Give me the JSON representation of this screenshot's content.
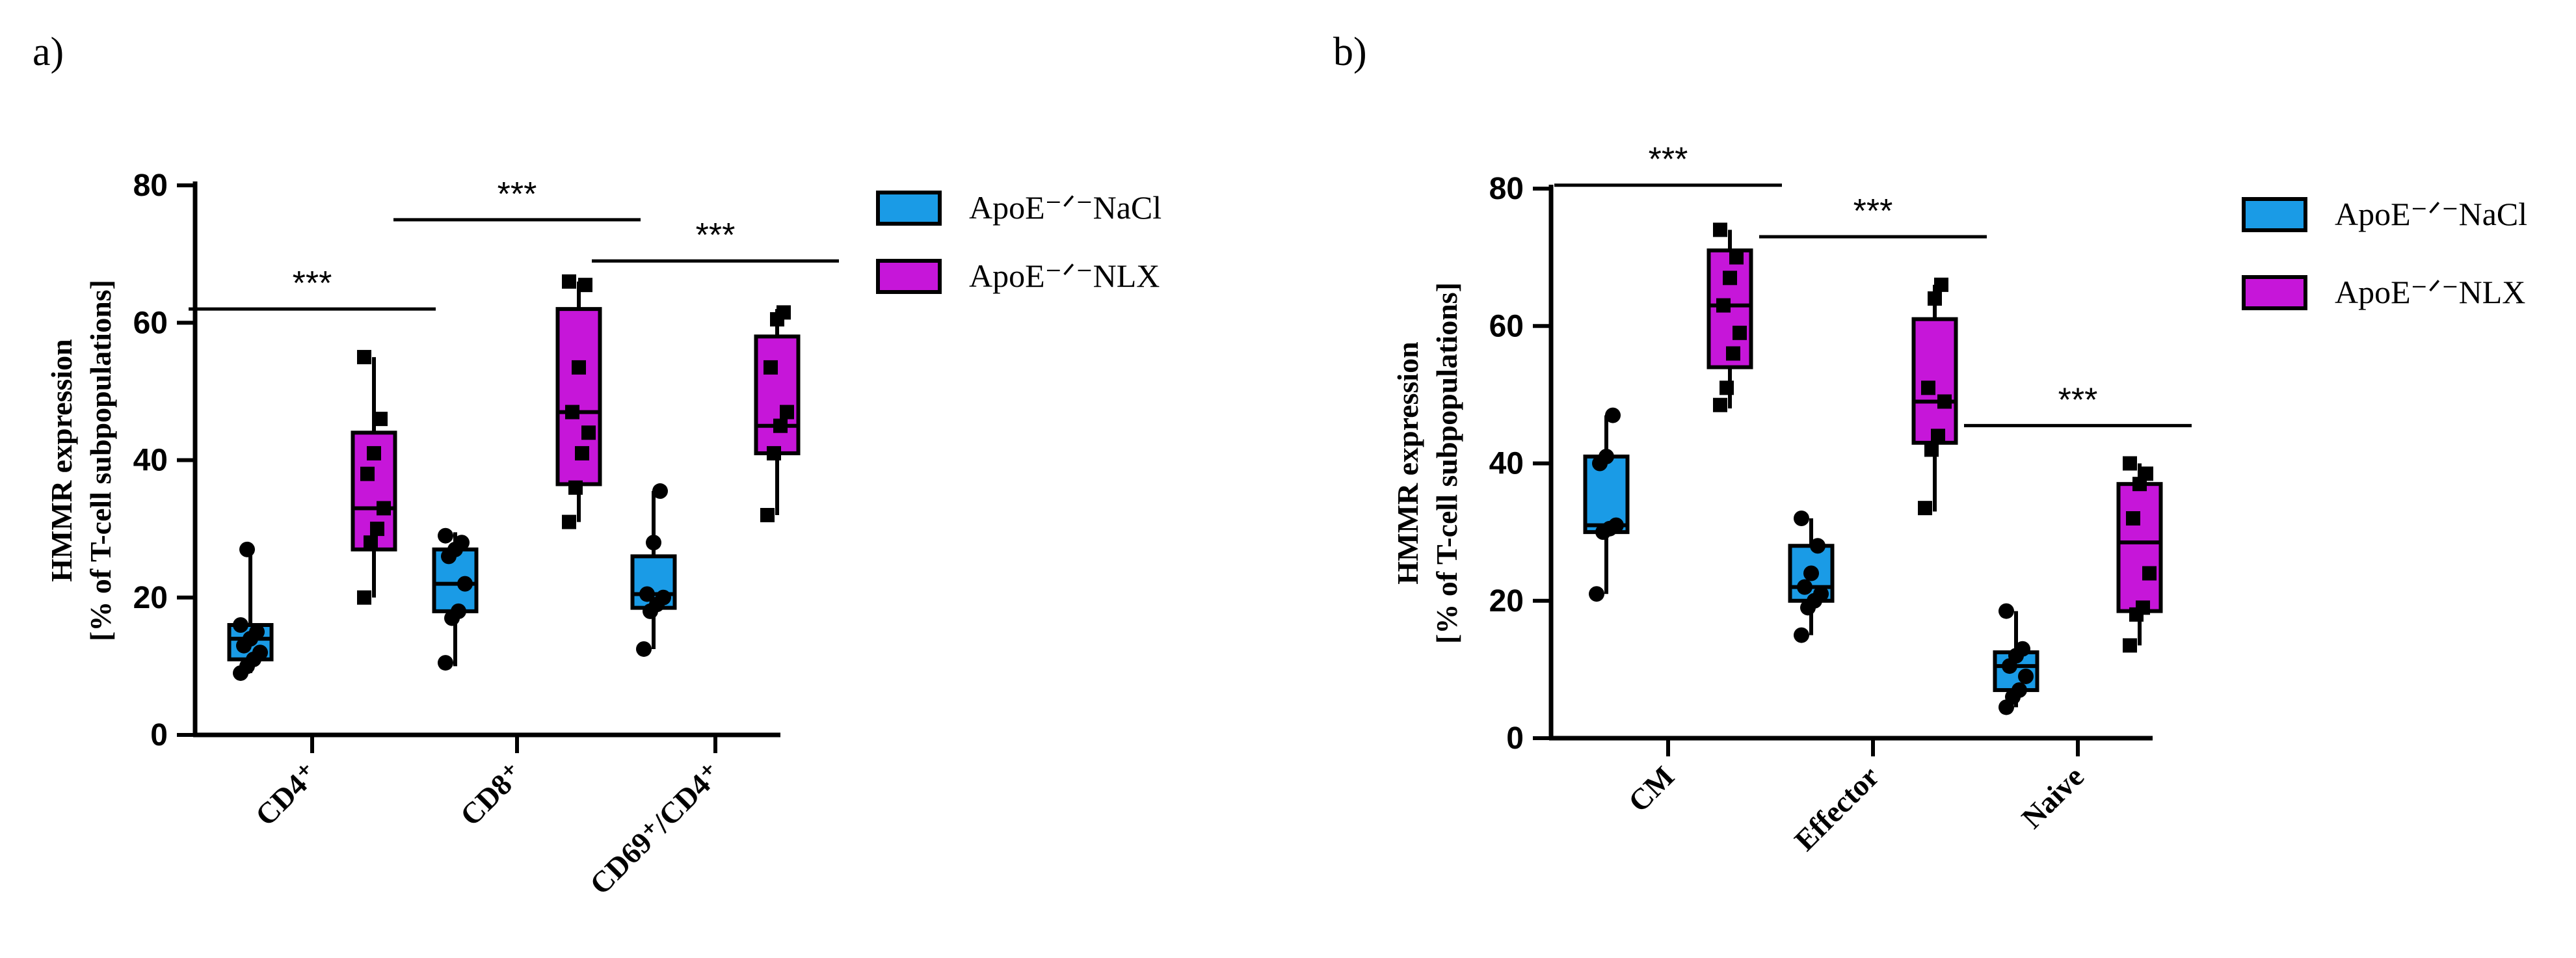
{
  "chart_data": [
    {
      "panel_label": "a)",
      "type": "box",
      "ylabel_line1": "HMMR expression",
      "ylabel_line2": "[% of T-cell subpopulations]",
      "ylim": [
        0,
        80
      ],
      "yticks": [
        "0",
        "20",
        "40",
        "60",
        "80"
      ],
      "categories": [
        "CD4⁺",
        "CD8⁺",
        "CD69⁺/CD4⁺"
      ],
      "legend": [
        "ApoE⁻ᐟ⁻NaCl",
        "ApoE⁻ᐟ⁻NLX"
      ],
      "legend_position": "right",
      "series": [
        {
          "name": "ApoE⁻ᐟ⁻NaCl",
          "color": "#1a9be6",
          "boxes": [
            {
              "min": 9,
              "q1": 11,
              "median": 14,
              "q3": 16,
              "max": 27,
              "points": [
                9,
                10,
                11,
                12,
                13,
                14,
                15,
                16,
                27
              ]
            },
            {
              "min": 10,
              "q1": 18,
              "median": 22,
              "q3": 27,
              "max": 29.5,
              "points": [
                10.5,
                17,
                18,
                22,
                26,
                27,
                28,
                29
              ]
            },
            {
              "min": 12.5,
              "q1": 18.5,
              "median": 20.5,
              "q3": 26,
              "max": 35.5,
              "points": [
                12.5,
                18,
                19,
                20,
                20.5,
                28,
                35.5
              ]
            }
          ]
        },
        {
          "name": "ApoE⁻ᐟ⁻NLX",
          "color": "#c616d9",
          "boxes": [
            {
              "min": 20,
              "q1": 27,
              "median": 33,
              "q3": 44,
              "max": 55,
              "points": [
                20,
                28,
                30,
                33,
                38,
                41,
                46,
                55
              ]
            },
            {
              "min": 31,
              "q1": 36.5,
              "median": 47,
              "q3": 62,
              "max": 66,
              "points": [
                31,
                36,
                41,
                44,
                47,
                53.5,
                65.5,
                66
              ]
            },
            {
              "min": 32,
              "q1": 41,
              "median": 45,
              "q3": 58,
              "max": 62,
              "points": [
                32,
                41,
                45,
                47,
                53.5,
                60.5,
                61.5
              ]
            }
          ]
        }
      ],
      "significance": [
        "***",
        "***",
        "***"
      ],
      "significance_levels": [
        62,
        75,
        69
      ]
    },
    {
      "panel_label": "b)",
      "type": "box",
      "ylabel_line1": "HMMR expression",
      "ylabel_line2": "[% of T-cell subpopulations]",
      "ylim": [
        0,
        80
      ],
      "yticks": [
        "0",
        "20",
        "40",
        "60",
        "80"
      ],
      "categories": [
        "CM",
        "Effector",
        "Naive"
      ],
      "legend": [
        "ApoE⁻ᐟ⁻NaCl",
        "ApoE⁻ᐟ⁻NLX"
      ],
      "legend_position": "right",
      "series": [
        {
          "name": "ApoE⁻ᐟ⁻NaCl",
          "color": "#1a9be6",
          "boxes": [
            {
              "min": 21,
              "q1": 30,
              "median": 31,
              "q3": 41,
              "max": 47,
              "points": [
                21,
                30,
                30.5,
                31,
                40,
                41,
                47
              ]
            },
            {
              "min": 15,
              "q1": 20,
              "median": 22,
              "q3": 28,
              "max": 32,
              "points": [
                15,
                19,
                20,
                21,
                22,
                24,
                28,
                32
              ]
            },
            {
              "min": 4.5,
              "q1": 7,
              "median": 10.5,
              "q3": 12.5,
              "max": 18.5,
              "points": [
                4.5,
                6,
                7,
                9,
                10.5,
                12,
                13,
                18.5
              ]
            }
          ]
        },
        {
          "name": "ApoE⁻ᐟ⁻NLX",
          "color": "#c616d9",
          "boxes": [
            {
              "min": 48,
              "q1": 54,
              "median": 63,
              "q3": 71,
              "max": 74,
              "points": [
                48.5,
                51,
                56,
                59,
                63,
                67,
                70,
                74
              ]
            },
            {
              "min": 33,
              "q1": 43,
              "median": 49,
              "q3": 61,
              "max": 66,
              "points": [
                33.5,
                42,
                44,
                49,
                51,
                64,
                66
              ]
            },
            {
              "min": 13.5,
              "q1": 18.5,
              "median": 28.5,
              "q3": 37,
              "max": 40,
              "points": [
                13.5,
                18,
                19,
                24,
                32,
                37,
                38.5,
                40
              ]
            }
          ]
        }
      ],
      "significance": [
        "***",
        "***",
        "***"
      ],
      "significance_levels": [
        80.5,
        73,
        45.5
      ]
    }
  ]
}
